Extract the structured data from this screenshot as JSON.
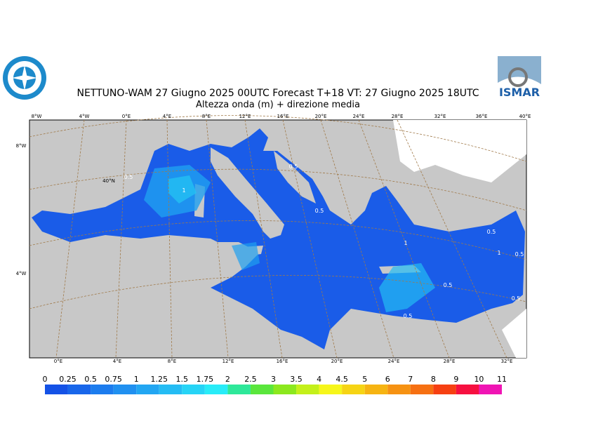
{
  "header": {
    "title": "NETTUNO-WAM  27   Giugno  2025 00UTC Forecast T+18 VT: 27   Giugno  2025 18UTC",
    "subtitle": "Altezza onda (m) + direzione media"
  },
  "map": {
    "top_labels": [
      "8°W",
      "4°W",
      "0°E",
      "4°E",
      "8°E",
      "12°E",
      "16°E",
      "20°E",
      "24°E",
      "28°E",
      "32°E",
      "36°E",
      "40°E"
    ],
    "bottom_labels": [
      "0°E",
      "4°E",
      "8°E",
      "12°E",
      "16°E",
      "20°E",
      "24°E",
      "28°E",
      "32°E"
    ],
    "left_labels": [
      "8°W",
      "40°N",
      "4°W"
    ],
    "contour_labels": [
      "0.5",
      "1",
      "0.5",
      "0.5",
      "0.5",
      "1",
      "0.5",
      "0.5",
      "0.5",
      "0.5",
      "1"
    ]
  },
  "colorbar": {
    "labels": [
      "0",
      "0.25",
      "0.5",
      "0.75",
      "1",
      "1.25",
      "1.5",
      "1.75",
      "2",
      "2.5",
      "3",
      "3.5",
      "4",
      "4.5",
      "5",
      "6",
      "7",
      "8",
      "9",
      "10",
      "11"
    ],
    "colors": [
      "#1452e6",
      "#1866ea",
      "#1c7cee",
      "#2090f0",
      "#22a6f2",
      "#24bcf4",
      "#26d4f6",
      "#28ecf8",
      "#2ee89a",
      "#5ae63c",
      "#8ce81e",
      "#c4f01a",
      "#f6f61a",
      "#f6d414",
      "#f6b412",
      "#f69212",
      "#f67012",
      "#f64012",
      "#f61040",
      "#f014b4"
    ]
  }
}
